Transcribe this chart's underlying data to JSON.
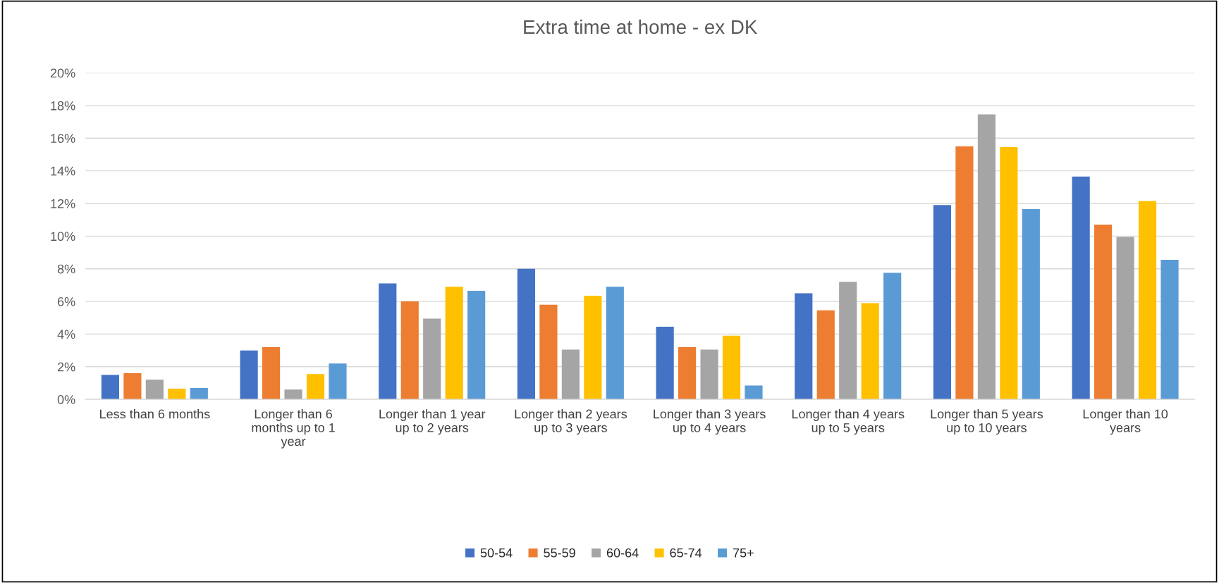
{
  "chart_data": {
    "type": "bar",
    "title": "Extra time at home - ex DK",
    "categories": [
      "Less than 6 months",
      "Longer than 6\nmonths up to 1\nyear",
      "Longer than 1 year\nup to 2 years",
      "Longer than 2 years\nup to 3 years",
      "Longer than 3 years\nup to 4 years",
      "Longer than 4 years\nup to 5 years",
      "Longer than 5 years\nup to 10 years",
      "Longer than 10\nyears"
    ],
    "series": [
      {
        "name": "50-54",
        "color": "#4472c4",
        "values": [
          1.5,
          3.0,
          7.1,
          8.0,
          4.45,
          6.5,
          11.9,
          13.65
        ]
      },
      {
        "name": "55-59",
        "color": "#ed7d31",
        "values": [
          1.6,
          3.2,
          6.0,
          5.8,
          3.2,
          5.45,
          15.5,
          10.7
        ]
      },
      {
        "name": "60-64",
        "color": "#a5a5a5",
        "values": [
          1.2,
          0.6,
          4.95,
          3.05,
          3.05,
          7.2,
          17.45,
          9.95
        ]
      },
      {
        "name": "65-74",
        "color": "#ffc000",
        "values": [
          0.65,
          1.55,
          6.9,
          6.35,
          3.9,
          5.9,
          15.45,
          12.15
        ]
      },
      {
        "name": "75+",
        "color": "#5b9bd5",
        "values": [
          0.7,
          2.2,
          6.65,
          6.9,
          0.85,
          7.75,
          11.65,
          8.55
        ]
      }
    ],
    "ylim": [
      0,
      20
    ],
    "yticks": [
      {
        "value": 0,
        "label": "0%"
      },
      {
        "value": 2,
        "label": "2%"
      },
      {
        "value": 4,
        "label": "4%"
      },
      {
        "value": 6,
        "label": "6%"
      },
      {
        "value": 8,
        "label": "8%"
      },
      {
        "value": 10,
        "label": "10%"
      },
      {
        "value": 12,
        "label": "12%"
      },
      {
        "value": 14,
        "label": "14%"
      },
      {
        "value": 16,
        "label": "16%"
      },
      {
        "value": 18,
        "label": "18%"
      },
      {
        "value": 20,
        "label": "20%"
      }
    ],
    "grid": "y",
    "legend": "bottom"
  }
}
